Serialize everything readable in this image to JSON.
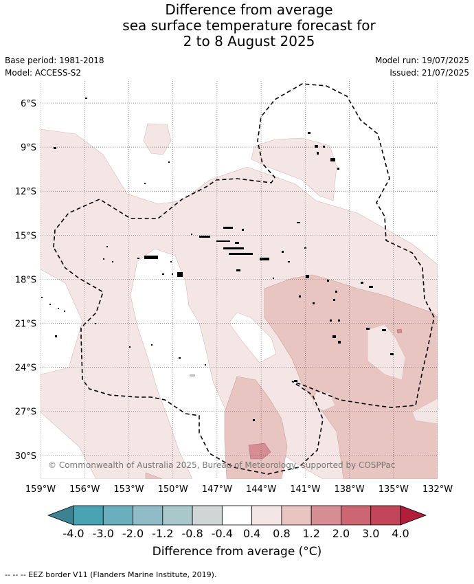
{
  "title": {
    "line1": "Difference from average",
    "line2": "sea surface temperature forecast for",
    "line3": "2 to 8 August 2025"
  },
  "meta": {
    "base_period": "Base period: 1981-2018",
    "model": "Model: ACCESS-S2",
    "model_run": "Model run: 19/07/2025",
    "issued": "Issued: 21/07/2025"
  },
  "map": {
    "lon_range": [
      -159,
      -132
    ],
    "lat_range": [
      -31.6,
      -4.5
    ],
    "lat_ticks": [
      "6°S",
      "9°S",
      "12°S",
      "15°S",
      "18°S",
      "21°S",
      "24°S",
      "27°S",
      "30°S"
    ],
    "lat_values": [
      -6,
      -9,
      -12,
      -15,
      -18,
      -21,
      -24,
      -27,
      -30
    ],
    "lon_ticks": [
      "159°W",
      "156°W",
      "153°W",
      "150°W",
      "147°W",
      "144°W",
      "141°W",
      "138°W",
      "135°W",
      "132°W"
    ],
    "lon_values": [
      -159,
      -156,
      -153,
      -150,
      -147,
      -144,
      -141,
      -138,
      -135,
      -132
    ],
    "copyright": "© Commonwealth of Australia 2025, Bureau of Meteorology, supported by COSPPac",
    "eez_color": "#000000"
  },
  "colorbar": {
    "colors": [
      "#3c8290",
      "#48a4b3",
      "#6aafbd",
      "#8fbcc6",
      "#aac8cc",
      "#d0d5d6",
      "#ffffff",
      "#f5e6e6",
      "#e8c5c1",
      "#d68d93",
      "#cc6673",
      "#c2465a",
      "#b01e3c"
    ],
    "labels": [
      "-4.0",
      "-3.0",
      "-2.0",
      "-1.2",
      "-0.8",
      "-0.4",
      "0.4",
      "0.8",
      "1.2",
      "2.0",
      "3.0",
      "4.0"
    ],
    "title": "Difference from average (°C)"
  },
  "footnote": "--  --  -- EEZ border V11 (Flanders Marine Institute, 2019)."
}
